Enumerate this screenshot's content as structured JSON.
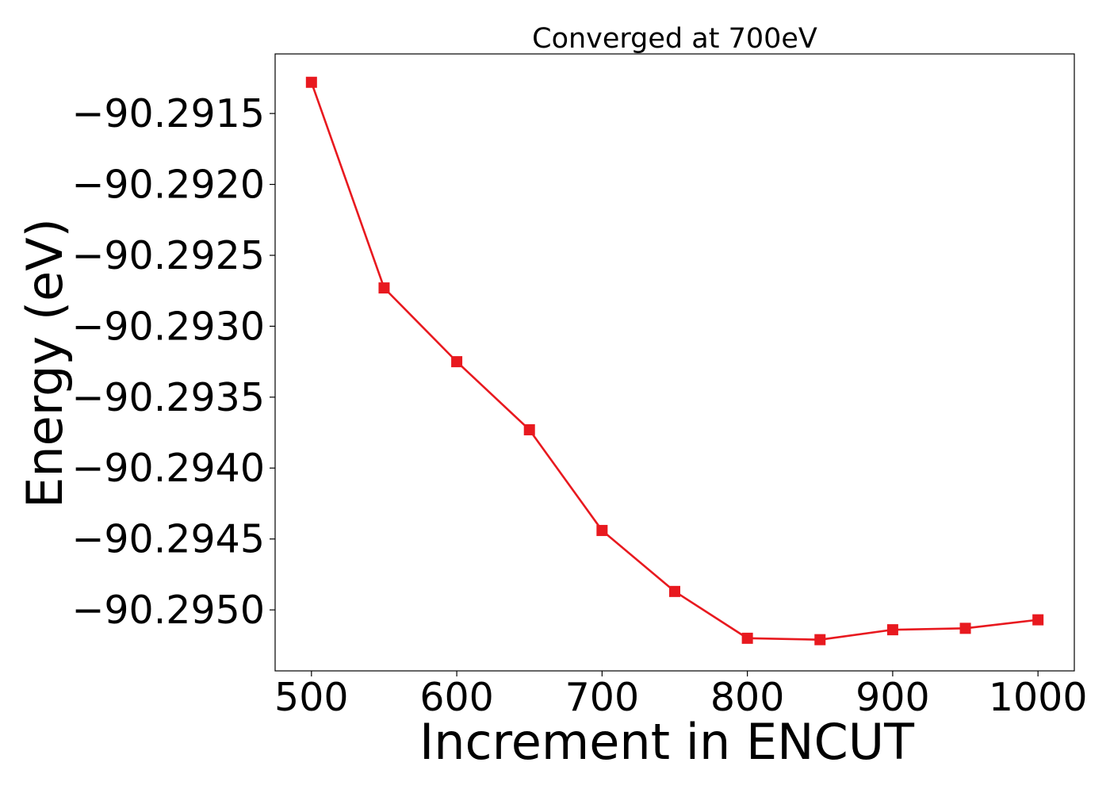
{
  "chart_data": {
    "type": "line",
    "title": "Converged at 700eV",
    "xlabel": "Increment in ENCUT",
    "ylabel": "Energy (eV)",
    "x": [
      500,
      550,
      600,
      650,
      700,
      750,
      800,
      850,
      900,
      950,
      1000
    ],
    "series": [
      {
        "values": [
          -90.29128,
          -90.29273,
          -90.29325,
          -90.29373,
          -90.29444,
          -90.29487,
          -90.2952,
          -90.29521,
          -90.29514,
          -90.29513,
          -90.29507
        ],
        "color": "#e8191f",
        "marker": "square"
      }
    ],
    "xticks": [
      500,
      600,
      700,
      800,
      900,
      1000
    ],
    "xtick_labels": [
      "500",
      "600",
      "700",
      "800",
      "900",
      "1000"
    ],
    "yticks": [
      -90.2915,
      -90.292,
      -90.2925,
      -90.293,
      -90.2935,
      -90.294,
      -90.2945,
      -90.295
    ],
    "ytick_labels": [
      "−90.2915",
      "−90.2920",
      "−90.2925",
      "−90.2930",
      "−90.2935",
      "−90.2940",
      "−90.2945",
      "−90.2950"
    ],
    "xlim": [
      475,
      1025
    ],
    "ylim": [
      -90.29543,
      -90.29108
    ],
    "grid": false,
    "legend": "none"
  }
}
